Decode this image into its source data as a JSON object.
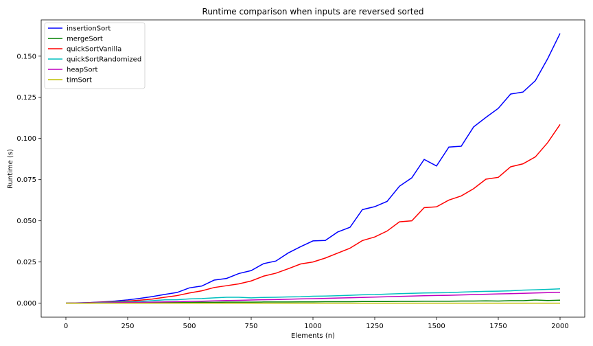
{
  "chart_data": {
    "type": "line",
    "title": "Runtime comparison when inputs are reversed sorted",
    "xlabel": "Elements (n)",
    "ylabel": "Runtime (s)",
    "xlim": [
      -100,
      2100
    ],
    "ylim": [
      -0.0085,
      0.172
    ],
    "xticks": [
      0,
      250,
      500,
      750,
      1000,
      1250,
      1500,
      1750,
      2000
    ],
    "yticks": [
      0.0,
      0.025,
      0.05,
      0.075,
      0.1,
      0.125,
      0.15
    ],
    "ytick_labels": [
      "0.000",
      "0.025",
      "0.050",
      "0.075",
      "0.100",
      "0.125",
      "0.150"
    ],
    "grid": false,
    "legend_position": "top-left",
    "x": [
      0,
      50,
      100,
      150,
      200,
      250,
      300,
      350,
      400,
      450,
      500,
      550,
      600,
      650,
      700,
      750,
      800,
      850,
      900,
      950,
      1000,
      1050,
      1100,
      1150,
      1200,
      1250,
      1300,
      1350,
      1400,
      1450,
      1500,
      1550,
      1600,
      1650,
      1700,
      1750,
      1800,
      1850,
      1900,
      1950,
      2000
    ],
    "series": [
      {
        "name": "insertionSort",
        "color": "#0000ff",
        "values": [
          0.0,
          0.0002,
          0.0004,
          0.0008,
          0.0013,
          0.002,
          0.0029,
          0.004,
          0.0053,
          0.0065,
          0.0093,
          0.0104,
          0.014,
          0.015,
          0.018,
          0.0198,
          0.024,
          0.0256,
          0.0305,
          0.0343,
          0.0378,
          0.0381,
          0.0432,
          0.0461,
          0.0568,
          0.0586,
          0.0618,
          0.071,
          0.0761,
          0.0873,
          0.0833,
          0.0948,
          0.0953,
          0.107,
          0.1128,
          0.1183,
          0.127,
          0.1282,
          0.1351,
          0.1485,
          0.1638
        ]
      },
      {
        "name": "mergeSort",
        "color": "#008000",
        "values": [
          0.0,
          0.0001,
          0.0001,
          0.0002,
          0.0002,
          0.0003,
          0.0003,
          0.0003,
          0.0004,
          0.0004,
          0.0004,
          0.0005,
          0.0005,
          0.0006,
          0.0006,
          0.0006,
          0.0007,
          0.0007,
          0.0007,
          0.0008,
          0.0008,
          0.0009,
          0.0009,
          0.0009,
          0.001,
          0.001,
          0.001,
          0.0011,
          0.0011,
          0.0012,
          0.0012,
          0.0012,
          0.0013,
          0.0013,
          0.0014,
          0.0013,
          0.0015,
          0.0015,
          0.0019,
          0.0016,
          0.0018
        ]
      },
      {
        "name": "quickSortVanilla",
        "color": "#ff0000",
        "values": [
          0.0,
          0.0001,
          0.0003,
          0.0006,
          0.0009,
          0.0013,
          0.0018,
          0.0025,
          0.0036,
          0.0046,
          0.0062,
          0.0075,
          0.0095,
          0.0106,
          0.0117,
          0.0135,
          0.0164,
          0.0182,
          0.0209,
          0.0238,
          0.025,
          0.0274,
          0.0304,
          0.0334,
          0.038,
          0.0402,
          0.0438,
          0.0494,
          0.05,
          0.058,
          0.0585,
          0.0626,
          0.0651,
          0.0695,
          0.0753,
          0.0764,
          0.0828,
          0.0846,
          0.0888,
          0.0975,
          0.1085
        ]
      },
      {
        "name": "quickSortRandomized",
        "color": "#00bfbf",
        "values": [
          0.0,
          0.0001,
          0.0002,
          0.0004,
          0.0006,
          0.0008,
          0.0011,
          0.0015,
          0.002,
          0.0021,
          0.0026,
          0.0028,
          0.0032,
          0.0036,
          0.0036,
          0.0032,
          0.0035,
          0.0036,
          0.0038,
          0.0039,
          0.0042,
          0.0043,
          0.0045,
          0.0048,
          0.0051,
          0.0052,
          0.0055,
          0.0058,
          0.006,
          0.0062,
          0.0063,
          0.0064,
          0.0067,
          0.007,
          0.0072,
          0.0073,
          0.0075,
          0.0079,
          0.0081,
          0.0084,
          0.0087
        ]
      },
      {
        "name": "heapSort",
        "color": "#bf00bf",
        "values": [
          0.0,
          0.0001,
          0.0001,
          0.0002,
          0.0003,
          0.0004,
          0.0005,
          0.0006,
          0.0008,
          0.0009,
          0.0011,
          0.0012,
          0.0014,
          0.0016,
          0.0017,
          0.0019,
          0.0021,
          0.0022,
          0.0024,
          0.0026,
          0.0027,
          0.0029,
          0.0031,
          0.0033,
          0.0035,
          0.0037,
          0.0039,
          0.0041,
          0.0043,
          0.0045,
          0.0047,
          0.0048,
          0.005,
          0.0052,
          0.0054,
          0.0056,
          0.0058,
          0.006,
          0.0062,
          0.0064,
          0.0066
        ]
      },
      {
        "name": "timSort",
        "color": "#bfbf00",
        "values": [
          0.0,
          0.0,
          0.0,
          0.0,
          0.0,
          0.0,
          0.0,
          0.0,
          0.0,
          0.0,
          0.0,
          0.0,
          0.0,
          0.0,
          0.0,
          0.0,
          0.0,
          0.0,
          0.0,
          0.0,
          0.0,
          0.0,
          0.0,
          0.0,
          0.0,
          0.0,
          0.0,
          0.0,
          0.0,
          0.0,
          0.0,
          0.0,
          0.0,
          0.0,
          0.0,
          0.0,
          0.0,
          0.0,
          0.0,
          0.0,
          0.0
        ]
      }
    ]
  }
}
